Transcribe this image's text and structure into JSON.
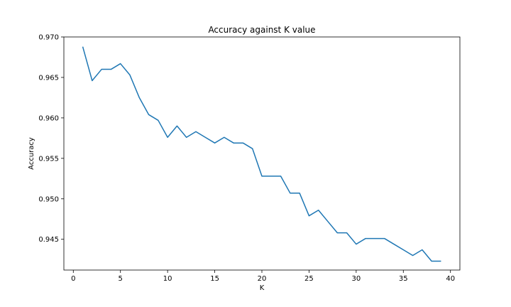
{
  "chart_data": {
    "type": "line",
    "title": "Accuracy against K value",
    "xlabel": "K",
    "ylabel": "Accuracy",
    "xlim": [
      -1,
      41
    ],
    "ylim": [
      0.9412,
      0.97
    ],
    "xticks": [
      0,
      5,
      10,
      15,
      20,
      25,
      30,
      35,
      40
    ],
    "xtick_labels": [
      "0",
      "5",
      "10",
      "15",
      "20",
      "25",
      "30",
      "35",
      "40"
    ],
    "yticks": [
      0.945,
      0.95,
      0.955,
      0.96,
      0.965,
      0.97
    ],
    "ytick_labels": [
      "0.945",
      "0.950",
      "0.955",
      "0.960",
      "0.965",
      "0.970"
    ],
    "grid": false,
    "series": [
      {
        "color": "#1f77b4",
        "x": [
          1,
          2,
          3,
          4,
          5,
          6,
          7,
          8,
          9,
          10,
          11,
          12,
          13,
          14,
          15,
          16,
          17,
          18,
          19,
          20,
          21,
          22,
          23,
          24,
          25,
          26,
          27,
          28,
          29,
          30,
          31,
          32,
          33,
          34,
          35,
          36,
          37,
          38,
          39
        ],
        "y": [
          0.9688,
          0.9646,
          0.966,
          0.966,
          0.9667,
          0.9653,
          0.9625,
          0.9604,
          0.9597,
          0.9576,
          0.959,
          0.9576,
          0.9583,
          0.9576,
          0.9569,
          0.9576,
          0.9569,
          0.9569,
          0.9562,
          0.9528,
          0.9528,
          0.9528,
          0.9507,
          0.9507,
          0.9479,
          0.9486,
          0.9472,
          0.9458,
          0.9458,
          0.9444,
          0.9451,
          0.9451,
          0.9451,
          0.9444,
          0.9437,
          0.943,
          0.9437,
          0.9423,
          0.9423
        ]
      }
    ]
  }
}
